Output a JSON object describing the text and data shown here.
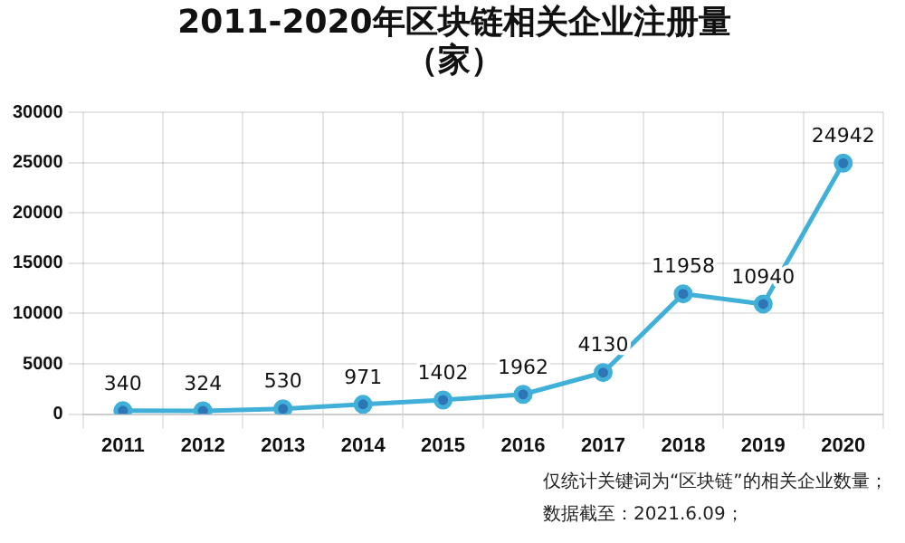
{
  "chart_data": {
    "type": "line",
    "title": "2011-2020年区块链相关企业注册量（家）",
    "categories": [
      "2011",
      "2012",
      "2013",
      "2014",
      "2015",
      "2016",
      "2017",
      "2018",
      "2019",
      "2020"
    ],
    "series": [
      {
        "color": "#41b0d8",
        "values": [
          340,
          324,
          530,
          971,
          1402,
          1962,
          4130,
          11958,
          10940,
          24942
        ]
      }
    ],
    "ylim": [
      0,
      30000
    ],
    "yticks": [
      0,
      5000,
      10000,
      15000,
      20000,
      25000,
      30000
    ],
    "grid": true,
    "legend": false,
    "marker": "circle",
    "data_labels": true,
    "annotations": [
      "仅统计关键词为“区块链”的相关企业数量；",
      "数据截至：2021.6.09；"
    ]
  }
}
